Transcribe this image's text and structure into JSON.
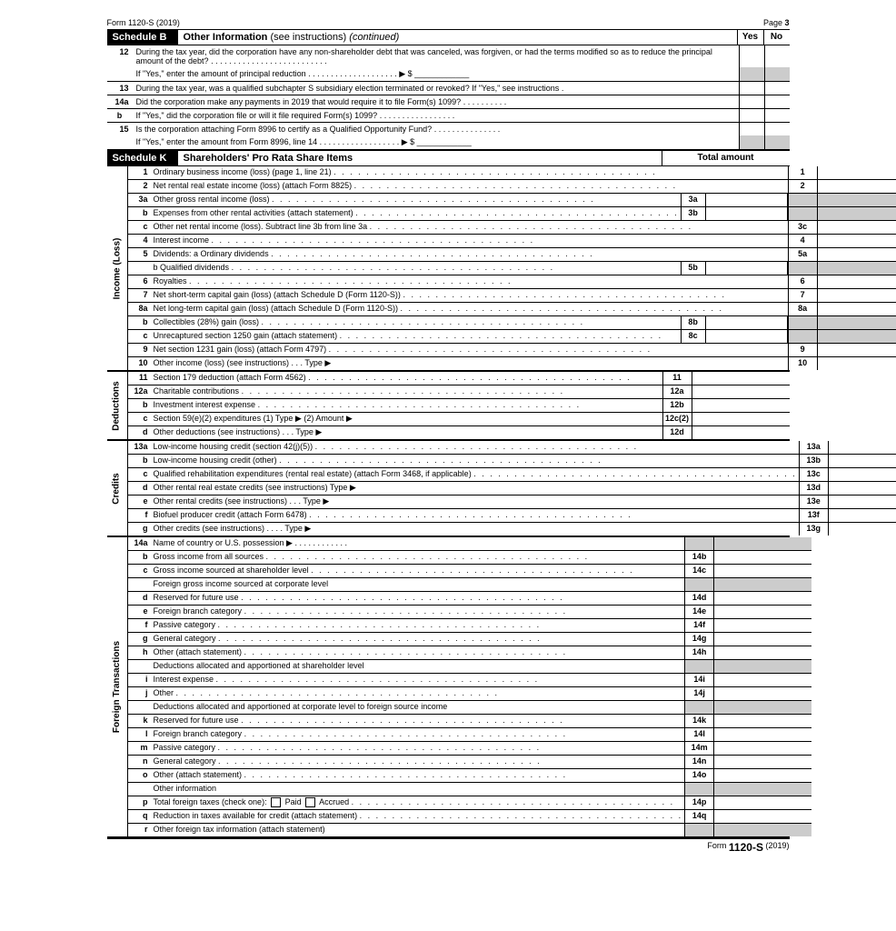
{
  "form_header": {
    "left": "Form 1120-S (2019)",
    "right": "Page",
    "page_num": "3"
  },
  "scheduleB": {
    "label": "Schedule B",
    "title": "Other Information",
    "title_sub": "(see instructions)",
    "title_cont": "(continued)",
    "yes": "Yes",
    "no": "No",
    "rows": {
      "r12_num": "12",
      "r12_text": "During the tax year, did the corporation have any non-shareholder debt that was canceled, was forgiven, or had the terms modified so as to reduce the principal amount of the debt?",
      "r12_if": "If \"Yes,\" enter the amount of principal reduction",
      "r12_dollar": "$",
      "r13_num": "13",
      "r13_text": "During the tax year, was a qualified subchapter S subsidiary election terminated or revoked? If \"Yes,\" see instructions",
      "r14a_num": "14a",
      "r14a_text": "Did the corporation make any payments in 2019 that would require it to file Form(s) 1099?",
      "r14b_num": "b",
      "r14b_text": "If \"Yes,\" did the corporation file or will it file required Form(s) 1099?",
      "r15_num": "15",
      "r15_text": "Is the corporation attaching Form 8996 to certify as a Qualified Opportunity Fund?",
      "r15_if": "If \"Yes,\" enter the amount from Form 8996, line 14",
      "r15_dollar": "$"
    }
  },
  "scheduleK": {
    "label": "Schedule K",
    "title": "Shareholders' Pro Rata Share Items",
    "total_label": "Total amount",
    "sections": {
      "income": "Income (Loss)",
      "deductions": "Deductions",
      "credits": "Credits",
      "foreign": "Foreign Transactions"
    },
    "income_rows": [
      {
        "num": "1",
        "desc": "Ordinary business income (loss) (page 1, line 21)",
        "line": "1"
      },
      {
        "num": "2",
        "desc": "Net rental real estate income (loss) (attach Form 8825)",
        "line": "2"
      },
      {
        "num": "3a",
        "desc": "Other gross rental income (loss)",
        "mid": "3a",
        "line_shaded": true
      },
      {
        "num": "b",
        "desc": "Expenses from other rental activities (attach statement)",
        "mid": "3b",
        "line_shaded": true
      },
      {
        "num": "c",
        "desc": "Other net rental income (loss). Subtract line 3b from line 3a",
        "line": "3c"
      },
      {
        "num": "4",
        "desc": "Interest income",
        "line": "4"
      },
      {
        "num": "5",
        "desc": "Dividends:  a Ordinary dividends",
        "line": "5a"
      },
      {
        "num": "",
        "desc": "                       b Qualified dividends",
        "mid": "5b",
        "line_shaded": true
      },
      {
        "num": "6",
        "desc": "Royalties",
        "line": "6"
      },
      {
        "num": "7",
        "desc": "Net short-term capital gain (loss) (attach Schedule D (Form 1120-S))",
        "line": "7"
      },
      {
        "num": "8a",
        "desc": "Net long-term capital gain (loss) (attach Schedule D (Form 1120-S))",
        "line": "8a"
      },
      {
        "num": "b",
        "desc": "Collectibles (28%) gain (loss)",
        "mid": "8b",
        "line_shaded": true
      },
      {
        "num": "c",
        "desc": "Unrecaptured section 1250 gain (attach statement)",
        "mid": "8c",
        "line_shaded": true
      },
      {
        "num": "9",
        "desc": "Net section 1231 gain (loss) (attach Form 4797)",
        "line": "9"
      },
      {
        "num": "10",
        "desc": "Other income (loss) (see instructions)   .   .   .   Type ▶",
        "line": "10"
      }
    ],
    "deduction_rows": [
      {
        "num": "11",
        "desc": "Section 179 deduction (attach Form 4562)",
        "line": "11"
      },
      {
        "num": "12a",
        "desc": "Charitable contributions",
        "line": "12a"
      },
      {
        "num": "b",
        "desc": "Investment interest expense",
        "line": "12b"
      },
      {
        "num": "c",
        "desc": "Section 59(e)(2) expenditures   (1) Type ▶                                                    (2) Amount ▶",
        "line": "12c(2)"
      },
      {
        "num": "d",
        "desc": "Other deductions (see instructions)   .   .   .   Type ▶",
        "line": "12d"
      }
    ],
    "credit_rows": [
      {
        "num": "13a",
        "desc": "Low-income housing credit (section 42(j)(5))",
        "line": "13a"
      },
      {
        "num": "b",
        "desc": "Low-income housing credit (other)",
        "line": "13b"
      },
      {
        "num": "c",
        "desc": "Qualified rehabilitation expenditures (rental real estate) (attach Form 3468, if applicable)",
        "line": "13c"
      },
      {
        "num": "d",
        "desc": "Other rental real estate credits (see instructions)   Type ▶",
        "line": "13d"
      },
      {
        "num": "e",
        "desc": "Other rental credits (see instructions)   .   .   .   Type ▶",
        "line": "13e"
      },
      {
        "num": "f",
        "desc": "Biofuel producer credit (attach Form 6478)",
        "line": "13f"
      },
      {
        "num": "g",
        "desc": "Other credits (see instructions)   .   .   .   .   Type ▶",
        "line": "13g"
      }
    ],
    "foreign_rows": [
      {
        "num": "14a",
        "desc": "Name of country or U.S. possession ▶",
        "line_shaded": true
      },
      {
        "num": "b",
        "desc": "Gross income from all sources",
        "line": "14b"
      },
      {
        "num": "c",
        "desc": "Gross income sourced at shareholder level",
        "line": "14c"
      },
      {
        "num": "",
        "desc": "Foreign gross income sourced at corporate level",
        "line_shaded": true,
        "noline": true
      },
      {
        "num": "d",
        "desc": "Reserved for future use",
        "line": "14d"
      },
      {
        "num": "e",
        "desc": "Foreign branch category",
        "line": "14e"
      },
      {
        "num": "f",
        "desc": "Passive category",
        "line": "14f"
      },
      {
        "num": "g",
        "desc": "General category",
        "line": "14g"
      },
      {
        "num": "h",
        "desc": "Other (attach statement)",
        "line": "14h"
      },
      {
        "num": "",
        "desc": "Deductions allocated and apportioned at shareholder level",
        "line_shaded": true,
        "noline": true
      },
      {
        "num": "i",
        "desc": "Interest expense",
        "line": "14i"
      },
      {
        "num": "j",
        "desc": "Other",
        "line": "14j"
      },
      {
        "num": "",
        "desc": "Deductions allocated and apportioned at corporate level to foreign source income",
        "line_shaded": true,
        "noline": true
      },
      {
        "num": "k",
        "desc": "Reserved for future use",
        "line": "14k"
      },
      {
        "num": "l",
        "desc": "Foreign branch category",
        "line": "14l"
      },
      {
        "num": "m",
        "desc": "Passive category",
        "line": "14m"
      },
      {
        "num": "n",
        "desc": "General category",
        "line": "14n"
      },
      {
        "num": "o",
        "desc": "Other (attach statement)",
        "line": "14o"
      },
      {
        "num": "",
        "desc": "Other information",
        "line_shaded": true,
        "noline": true
      },
      {
        "num": "p",
        "desc": "Total foreign taxes (check one):   ☐ Paid    ☐ Accrued",
        "line": "14p",
        "arrow": true
      },
      {
        "num": "q",
        "desc": "Reduction in taxes available for credit (attach statement)",
        "line": "14q"
      },
      {
        "num": "r",
        "desc": "Other foreign tax information (attach statement)",
        "line_shaded": true,
        "noline": true
      }
    ]
  },
  "footer": {
    "form_label": "Form",
    "form_num": "1120-S",
    "year": "(2019)"
  }
}
